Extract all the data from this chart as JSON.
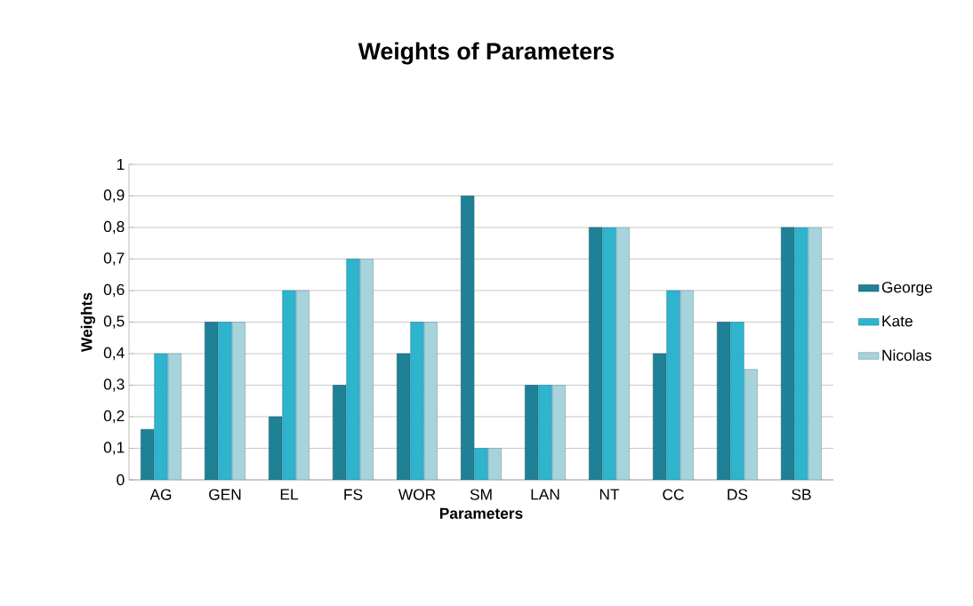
{
  "chart_data": {
    "type": "bar",
    "title": "Weights of Parameters",
    "xlabel": "Parameters",
    "ylabel": "Weights",
    "categories": [
      "AG",
      "GEN",
      "EL",
      "FS",
      "WOR",
      "SM",
      "LAN",
      "NT",
      "CC",
      "DS",
      "SB"
    ],
    "series": [
      {
        "name": "George",
        "color": "#1f8196",
        "values": [
          0.16,
          0.5,
          0.2,
          0.3,
          0.4,
          0.9,
          0.3,
          0.8,
          0.4,
          0.5,
          0.8
        ]
      },
      {
        "name": "Kate",
        "color": "#2eb4cf",
        "values": [
          0.4,
          0.5,
          0.6,
          0.7,
          0.5,
          0.1,
          0.3,
          0.8,
          0.6,
          0.5,
          0.8
        ]
      },
      {
        "name": "Nicolas",
        "color": "#a6d3dc",
        "values": [
          0.4,
          0.5,
          0.6,
          0.7,
          0.5,
          0.1,
          0.3,
          0.8,
          0.6,
          0.35,
          0.8
        ]
      }
    ],
    "ylim": [
      0,
      1
    ],
    "yticks": [
      0,
      {
        "value": 0.1,
        "label": "0,1"
      },
      {
        "value": 0.2,
        "label": "0,2"
      },
      {
        "value": 0.3,
        "label": "0,3"
      },
      {
        "value": 0.4,
        "label": "0,4"
      },
      {
        "value": 0.5,
        "label": "0,5"
      },
      {
        "value": 0.6,
        "label": "0,6"
      },
      {
        "value": 0.7,
        "label": "0,7"
      },
      {
        "value": 0.8,
        "label": "0,8"
      },
      {
        "value": 0.9,
        "label": "0,9"
      },
      1
    ],
    "grid": "y",
    "legend": "right"
  }
}
